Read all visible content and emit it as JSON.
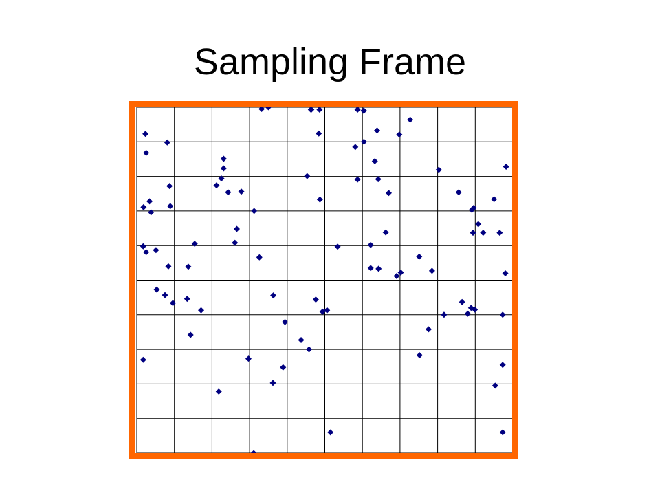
{
  "title": "Sampling Frame",
  "colors": {
    "frame_border": "#FF6600",
    "grid_line": "#000000",
    "point": "#000080",
    "background": "#FFFFFF"
  },
  "grid": {
    "columns": 10,
    "rows": 10
  },
  "marker_shape": "diamond",
  "chart_data": {
    "type": "scatter",
    "title": "",
    "xlabel": "",
    "ylabel": "",
    "xlim": [
      0,
      10
    ],
    "ylim": [
      0,
      10
    ],
    "grid": true,
    "points": [
      [
        0.23,
        9.23
      ],
      [
        0.25,
        8.68
      ],
      [
        0.51,
        5.87
      ],
      [
        0.38,
        6.96
      ],
      [
        0.18,
        7.11
      ],
      [
        0.34,
        7.28
      ],
      [
        0.17,
        5.98
      ],
      [
        0.25,
        5.81
      ],
      [
        0.81,
        8.98
      ],
      [
        0.89,
        7.14
      ],
      [
        0.87,
        7.72
      ],
      [
        0.84,
        5.4
      ],
      [
        0.53,
        4.73
      ],
      [
        0.75,
        4.57
      ],
      [
        0.96,
        4.34
      ],
      [
        0.17,
        2.7
      ],
      [
        1.34,
        4.46
      ],
      [
        1.37,
        5.39
      ],
      [
        1.54,
        6.05
      ],
      [
        1.43,
        3.42
      ],
      [
        1.71,
        4.13
      ],
      [
        2.12,
        7.74
      ],
      [
        2.25,
        7.94
      ],
      [
        2.31,
        8.23
      ],
      [
        2.31,
        8.51
      ],
      [
        2.43,
        7.54
      ],
      [
        2.78,
        7.56
      ],
      [
        2.61,
        6.08
      ],
      [
        2.66,
        6.48
      ],
      [
        2.18,
        1.78
      ],
      [
        3.12,
        7.0
      ],
      [
        3.26,
        5.66
      ],
      [
        2.97,
        2.73
      ],
      [
        3.11,
        0.0
      ],
      [
        3.32,
        9.95
      ],
      [
        3.5,
        10.0
      ],
      [
        3.62,
        2.03
      ],
      [
        3.94,
        3.79
      ],
      [
        3.63,
        4.56
      ],
      [
        3.89,
        2.48
      ],
      [
        4.64,
        9.93
      ],
      [
        4.86,
        9.93
      ],
      [
        4.84,
        9.24
      ],
      [
        4.63,
        9.93
      ],
      [
        4.53,
        8.01
      ],
      [
        4.87,
        7.33
      ],
      [
        4.76,
        4.44
      ],
      [
        5.06,
        4.13
      ],
      [
        4.94,
        4.09
      ],
      [
        4.37,
        3.27
      ],
      [
        4.58,
        3.0
      ],
      [
        5.15,
        0.6
      ],
      [
        6.04,
        9.9
      ],
      [
        6.39,
        9.33
      ],
      [
        6.33,
        8.44
      ],
      [
        6.22,
        6.02
      ],
      [
        6.22,
        5.35
      ],
      [
        5.34,
        5.97
      ],
      [
        6.43,
        5.33
      ],
      [
        5.81,
        8.85
      ],
      [
        6.03,
        9.9
      ],
      [
        6.04,
        9.0
      ],
      [
        5.87,
        9.93
      ],
      [
        5.87,
        7.91
      ],
      [
        6.42,
        7.92
      ],
      [
        6.7,
        7.52
      ],
      [
        6.62,
        6.38
      ],
      [
        6.98,
        9.21
      ],
      [
        7.27,
        9.64
      ],
      [
        7.02,
        5.22
      ],
      [
        6.91,
        5.12
      ],
      [
        7.85,
        5.27
      ],
      [
        7.76,
        3.58
      ],
      [
        7.51,
        5.68
      ],
      [
        7.52,
        2.83
      ],
      [
        8.03,
        8.19
      ],
      [
        8.17,
        4.0
      ],
      [
        8.56,
        7.54
      ],
      [
        8.65,
        4.37
      ],
      [
        8.89,
        4.2
      ],
      [
        8.99,
        4.15
      ],
      [
        8.8,
        4.03
      ],
      [
        9.82,
        8.28
      ],
      [
        9.8,
        5.2
      ],
      [
        9.73,
        4.0
      ],
      [
        9.73,
        2.55
      ],
      [
        9.53,
        1.95
      ],
      [
        9.73,
        0.6
      ],
      [
        9.65,
        6.37
      ],
      [
        9.21,
        6.37
      ],
      [
        8.94,
        6.37
      ],
      [
        8.96,
        7.09
      ],
      [
        8.91,
        7.03
      ],
      [
        9.5,
        7.34
      ],
      [
        9.08,
        6.62
      ]
    ]
  }
}
